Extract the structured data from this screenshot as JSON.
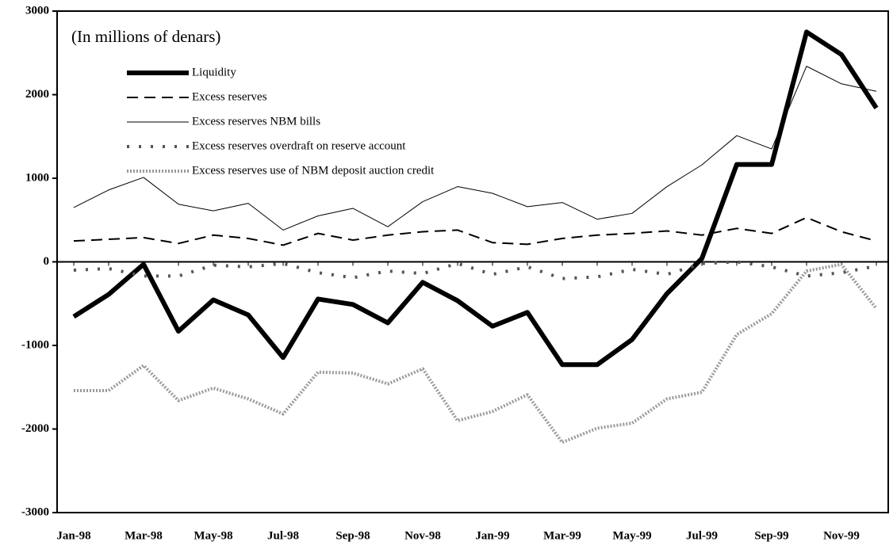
{
  "chart_data": {
    "type": "line",
    "subtitle": "(In millions of denars)",
    "categories": [
      "Jan-98",
      null,
      "Mar-98",
      null,
      "May-98",
      null,
      "Jul-98",
      null,
      "Sep-98",
      null,
      "Nov-98",
      null,
      "Jan-99",
      null,
      "Mar-99",
      null,
      "May-99",
      null,
      "Jul-99",
      null,
      "Sep-99",
      null,
      "Nov-99",
      null
    ],
    "ylim": [
      -3000,
      3000
    ],
    "yticks": [
      -3000,
      -2000,
      -1000,
      0,
      1000,
      2000,
      3000
    ],
    "series": [
      {
        "name": "Liquidity",
        "color": "#000000",
        "width": 6,
        "dash": "none",
        "values": [
          -655,
          -390,
          -30,
          -830,
          -455,
          -635,
          -1145,
          -445,
          -510,
          -730,
          -245,
          -465,
          -770,
          -605,
          -1230,
          -1230,
          -930,
          -380,
          40,
          1165,
          1165,
          2750,
          2480,
          1840
        ]
      },
      {
        "name": "Excess reserves",
        "color": "#000000",
        "width": 2,
        "dash": "14 8",
        "values": [
          250,
          270,
          290,
          220,
          320,
          280,
          200,
          340,
          260,
          320,
          360,
          380,
          230,
          210,
          280,
          320,
          340,
          370,
          320,
          400,
          340,
          530,
          360,
          250
        ]
      },
      {
        "name": "Excess reserves NBM bills",
        "color": "#000000",
        "width": 1,
        "dash": "none",
        "values": [
          650,
          860,
          1010,
          690,
          610,
          700,
          380,
          550,
          640,
          420,
          720,
          900,
          820,
          660,
          710,
          510,
          580,
          900,
          1160,
          1510,
          1350,
          2340,
          2130,
          2040
        ]
      },
      {
        "name": "Excess reserves overdraft on reserve account",
        "color": "#555555",
        "width": 4,
        "dash": "3 12",
        "values": [
          -100,
          -80,
          -170,
          -170,
          -40,
          -60,
          -20,
          -130,
          -190,
          -110,
          -140,
          -20,
          -150,
          -60,
          -200,
          -180,
          -90,
          -150,
          -20,
          0,
          -60,
          -170,
          -130,
          -50
        ]
      },
      {
        "name": "Excess reserves use of NBM deposit auction credit",
        "color": "#9a9a9a",
        "width": 4,
        "dash": "2 2",
        "values": [
          -1540,
          -1540,
          -1240,
          -1660,
          -1510,
          -1640,
          -1820,
          -1320,
          -1330,
          -1460,
          -1280,
          -1900,
          -1790,
          -1590,
          -2160,
          -1990,
          -1930,
          -1640,
          -1560,
          -870,
          -620,
          -110,
          -30,
          -560
        ]
      }
    ]
  }
}
